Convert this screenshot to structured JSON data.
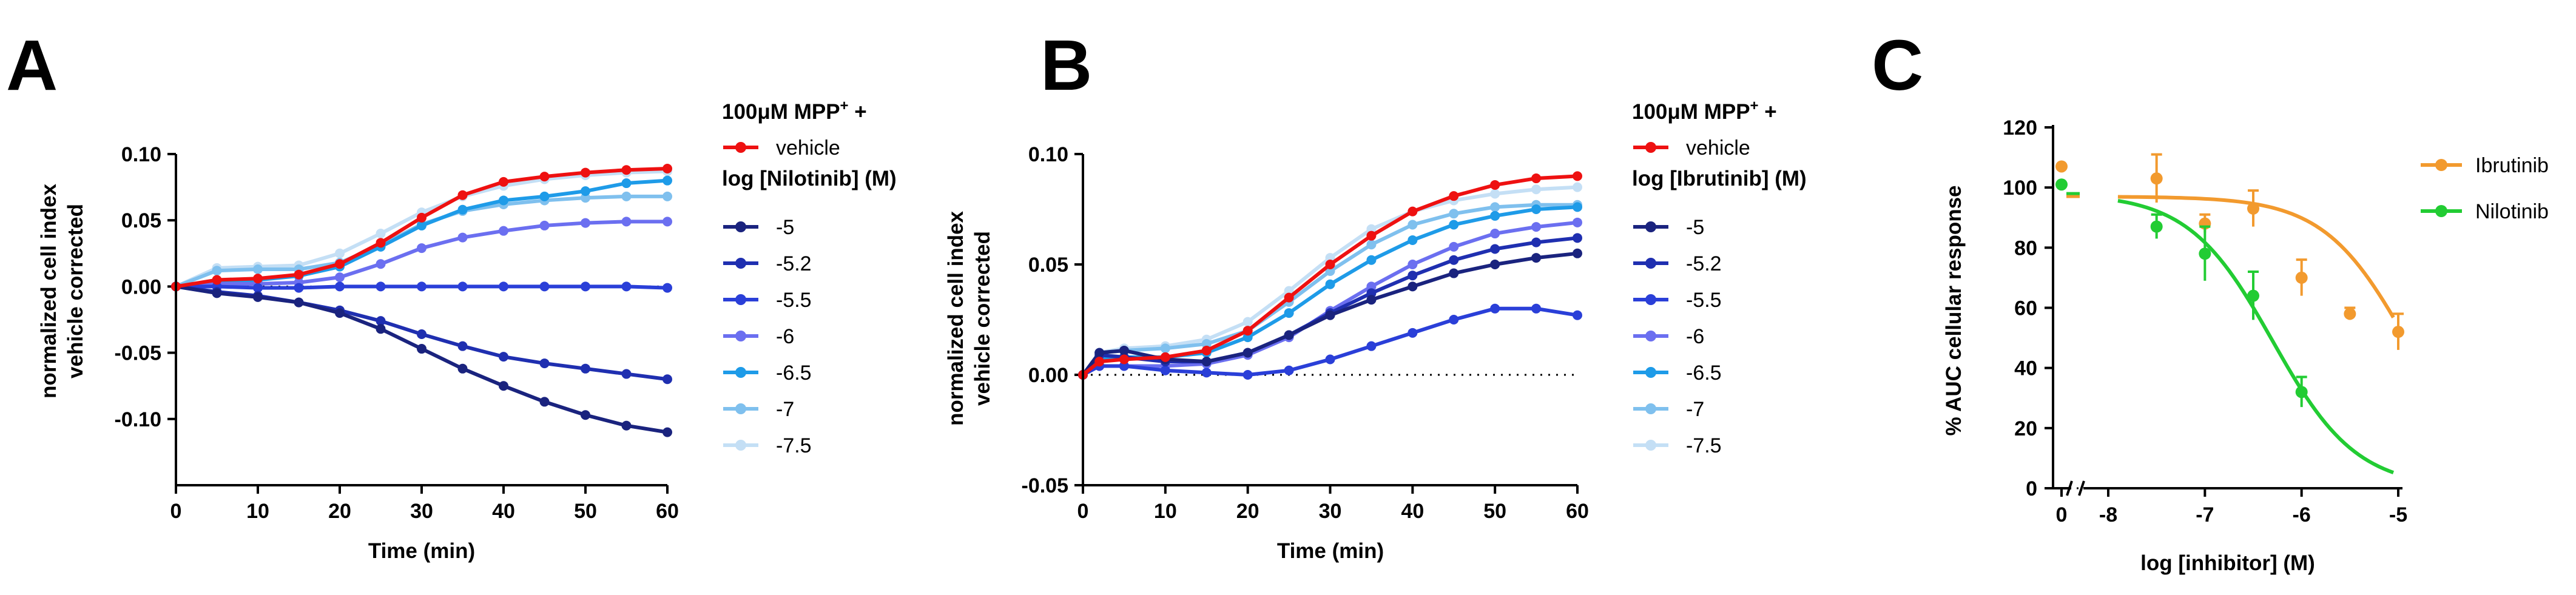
{
  "chart_data": [
    {
      "panel": "A",
      "type": "line",
      "xlabel": "Time (min)",
      "ylabel_lines": [
        "normalized cell index",
        "vehicle corrected"
      ],
      "xlim": [
        0,
        60
      ],
      "ylim": [
        -0.15,
        0.1
      ],
      "x_ticks": [
        0,
        10,
        20,
        30,
        40,
        50,
        60
      ],
      "y_ticks": [
        {
          "v": 0.1,
          "label": "0.10"
        },
        {
          "v": 0.05,
          "label": "0.05"
        },
        {
          "v": 0.0,
          "label": "0.00"
        },
        {
          "v": -0.05,
          "label": "-0.05"
        },
        {
          "v": -0.1,
          "label": "-0.10"
        }
      ],
      "legend_header": {
        "pre": "100μM MPP",
        "sup": "+",
        "post": " +"
      },
      "legend_subtitle": "log [Nilotinib] (M)",
      "series": [
        {
          "name": "vehicle",
          "color": "#ee1111",
          "x": [
            0,
            5,
            10,
            15,
            20,
            25,
            30,
            35,
            40,
            45,
            50,
            55,
            60
          ],
          "y": [
            0,
            0.005,
            0.006,
            0.009,
            0.017,
            0.033,
            0.052,
            0.069,
            0.079,
            0.083,
            0.086,
            0.088,
            0.089
          ]
        },
        {
          "name": "-5",
          "color": "#1a237e",
          "x": [
            0,
            5,
            10,
            15,
            20,
            25,
            30,
            35,
            40,
            45,
            50,
            55,
            60
          ],
          "y": [
            0,
            -0.005,
            -0.008,
            -0.012,
            -0.02,
            -0.032,
            -0.047,
            -0.062,
            -0.075,
            -0.087,
            -0.097,
            -0.105,
            -0.11
          ]
        },
        {
          "name": "-5.2",
          "color": "#1f2fb0",
          "x": [
            0,
            5,
            10,
            15,
            20,
            25,
            30,
            35,
            40,
            45,
            50,
            55,
            60
          ],
          "y": [
            0,
            -0.004,
            -0.007,
            -0.012,
            -0.018,
            -0.026,
            -0.036,
            -0.045,
            -0.053,
            -0.058,
            -0.062,
            -0.066,
            -0.07
          ]
        },
        {
          "name": "-5.5",
          "color": "#2a3fd8",
          "x": [
            0,
            5,
            10,
            15,
            20,
            25,
            30,
            35,
            40,
            45,
            50,
            55,
            60
          ],
          "y": [
            0,
            0,
            -0.001,
            -0.001,
            0,
            0,
            0,
            0,
            0,
            0,
            0,
            0,
            -0.001
          ]
        },
        {
          "name": "-6",
          "color": "#6b6ff0",
          "x": [
            0,
            5,
            10,
            15,
            20,
            25,
            30,
            35,
            40,
            45,
            50,
            55,
            60
          ],
          "y": [
            0,
            0.002,
            0.002,
            0.003,
            0.007,
            0.017,
            0.029,
            0.037,
            0.042,
            0.046,
            0.048,
            0.049,
            0.049
          ]
        },
        {
          "name": "-6.5",
          "color": "#1e9be8",
          "x": [
            0,
            5,
            10,
            15,
            20,
            25,
            30,
            35,
            40,
            45,
            50,
            55,
            60
          ],
          "y": [
            0,
            0.003,
            0.005,
            0.008,
            0.015,
            0.03,
            0.046,
            0.058,
            0.065,
            0.068,
            0.072,
            0.078,
            0.08
          ]
        },
        {
          "name": "-7",
          "color": "#7fc0ee",
          "x": [
            0,
            5,
            10,
            15,
            20,
            25,
            30,
            35,
            40,
            45,
            50,
            55,
            60
          ],
          "y": [
            0,
            0.012,
            0.013,
            0.013,
            0.018,
            0.031,
            0.047,
            0.057,
            0.062,
            0.065,
            0.067,
            0.068,
            0.068
          ]
        },
        {
          "name": "-7.5",
          "color": "#c4dff5",
          "x": [
            0,
            5,
            10,
            15,
            20,
            25,
            30,
            35,
            40,
            45,
            50,
            55,
            60
          ],
          "y": [
            0,
            0.014,
            0.015,
            0.016,
            0.025,
            0.04,
            0.056,
            0.068,
            0.076,
            0.081,
            0.084,
            0.086,
            0.087
          ]
        }
      ]
    },
    {
      "panel": "B",
      "type": "line",
      "xlabel": "Time (min)",
      "ylabel_lines": [
        "normalized cell index",
        "vehicle corrected"
      ],
      "xlim": [
        0,
        60
      ],
      "ylim": [
        -0.05,
        0.1
      ],
      "x_ticks": [
        0,
        10,
        20,
        30,
        40,
        50,
        60
      ],
      "y_ticks": [
        {
          "v": 0.1,
          "label": "0.10"
        },
        {
          "v": 0.05,
          "label": "0.05"
        },
        {
          "v": 0.0,
          "label": "0.00"
        },
        {
          "v": -0.05,
          "label": "-0.05"
        }
      ],
      "legend_header": {
        "pre": "100μM MPP",
        "sup": "+",
        "post": " +"
      },
      "legend_subtitle": "log [Ibrutinib] (M)",
      "series": [
        {
          "name": "vehicle",
          "color": "#ee1111",
          "x": [
            0,
            2,
            5,
            10,
            15,
            20,
            25,
            30,
            35,
            40,
            45,
            50,
            55,
            60
          ],
          "y": [
            0,
            0.006,
            0.007,
            0.008,
            0.011,
            0.02,
            0.035,
            0.05,
            0.063,
            0.074,
            0.081,
            0.086,
            0.089,
            0.09
          ]
        },
        {
          "name": "-5",
          "color": "#1a237e",
          "x": [
            0,
            2,
            5,
            10,
            15,
            20,
            25,
            30,
            35,
            40,
            45,
            50,
            55,
            60
          ],
          "y": [
            0,
            0.01,
            0.011,
            0.007,
            0.006,
            0.01,
            0.018,
            0.027,
            0.034,
            0.04,
            0.046,
            0.05,
            0.053,
            0.055
          ]
        },
        {
          "name": "-5.2",
          "color": "#1f2fb0",
          "x": [
            0,
            2,
            5,
            10,
            15,
            20,
            25,
            30,
            35,
            40,
            45,
            50,
            55,
            60
          ],
          "y": [
            0,
            0.009,
            0.008,
            0.006,
            0.006,
            0.01,
            0.018,
            0.028,
            0.037,
            0.045,
            0.052,
            0.057,
            0.06,
            0.062
          ]
        },
        {
          "name": "-5.5",
          "color": "#2a3fd8",
          "x": [
            0,
            2,
            5,
            10,
            15,
            20,
            25,
            30,
            35,
            40,
            45,
            50,
            55,
            60
          ],
          "y": [
            0,
            0.004,
            0.004,
            0.002,
            0.001,
            0,
            0.002,
            0.007,
            0.013,
            0.019,
            0.025,
            0.03,
            0.03,
            0.027
          ]
        },
        {
          "name": "-6",
          "color": "#6b6ff0",
          "x": [
            0,
            2,
            5,
            10,
            15,
            20,
            25,
            30,
            35,
            40,
            45,
            50,
            55,
            60
          ],
          "y": [
            0,
            0.004,
            0.004,
            0.004,
            0.005,
            0.009,
            0.017,
            0.029,
            0.04,
            0.05,
            0.058,
            0.064,
            0.067,
            0.069
          ]
        },
        {
          "name": "-6.5",
          "color": "#1e9be8",
          "x": [
            0,
            2,
            5,
            10,
            15,
            20,
            25,
            30,
            35,
            40,
            45,
            50,
            55,
            60
          ],
          "y": [
            0,
            0.007,
            0.008,
            0.008,
            0.01,
            0.017,
            0.028,
            0.041,
            0.052,
            0.061,
            0.068,
            0.072,
            0.075,
            0.076
          ]
        },
        {
          "name": "-7",
          "color": "#7fc0ee",
          "x": [
            0,
            2,
            5,
            10,
            15,
            20,
            25,
            30,
            35,
            40,
            45,
            50,
            55,
            60
          ],
          "y": [
            0,
            0.01,
            0.011,
            0.012,
            0.014,
            0.02,
            0.033,
            0.047,
            0.059,
            0.068,
            0.073,
            0.076,
            0.077,
            0.077
          ]
        },
        {
          "name": "-7.5",
          "color": "#c4dff5",
          "x": [
            0,
            2,
            5,
            10,
            15,
            20,
            25,
            30,
            35,
            40,
            45,
            50,
            55,
            60
          ],
          "y": [
            0,
            0.01,
            0.012,
            0.013,
            0.016,
            0.024,
            0.038,
            0.053,
            0.066,
            0.074,
            0.079,
            0.082,
            0.084,
            0.085
          ]
        }
      ]
    },
    {
      "panel": "C",
      "type": "scatter",
      "xlabel": "log [inhibitor] (M)",
      "ylabel": "% AUC cellular response",
      "ylim": [
        0,
        120
      ],
      "y_ticks": [
        0,
        20,
        40,
        60,
        80,
        100,
        120
      ],
      "x_ticks_log": [
        -8,
        -7,
        -6,
        -5
      ],
      "x_tick_zero": "0",
      "xlim_log": [
        -8.2,
        -5
      ],
      "series": [
        {
          "name": "Ibrutinib",
          "color": "#f29a2e",
          "control": {
            "y": 107,
            "err": 0
          },
          "points": [
            {
              "x": -7.5,
              "y": 103,
              "err": 8
            },
            {
              "x": -7,
              "y": 88,
              "err": 3
            },
            {
              "x": -6.5,
              "y": 93,
              "err": 6
            },
            {
              "x": -6,
              "y": 70,
              "err": 6
            },
            {
              "x": -5.5,
              "y": 58,
              "err": 2
            },
            {
              "x": -5,
              "y": 52,
              "err": 6
            }
          ],
          "fit": {
            "top": 97,
            "bottom": 0,
            "log_ic50": -4.9,
            "hill": 1.0
          }
        },
        {
          "name": "Nilotinib",
          "color": "#22cc33",
          "control": {
            "y": 101,
            "err": 0
          },
          "points": [
            {
              "x": -7.5,
              "y": 87,
              "err": 4
            },
            {
              "x": -7,
              "y": 78,
              "err": 9
            },
            {
              "x": -6.5,
              "y": 64,
              "err": 8
            },
            {
              "x": -6,
              "y": 32,
              "err": 5
            }
          ],
          "fit": {
            "top": 98,
            "bottom": 0,
            "log_ic50": -6.3,
            "hill": 1.0
          }
        }
      ]
    }
  ]
}
